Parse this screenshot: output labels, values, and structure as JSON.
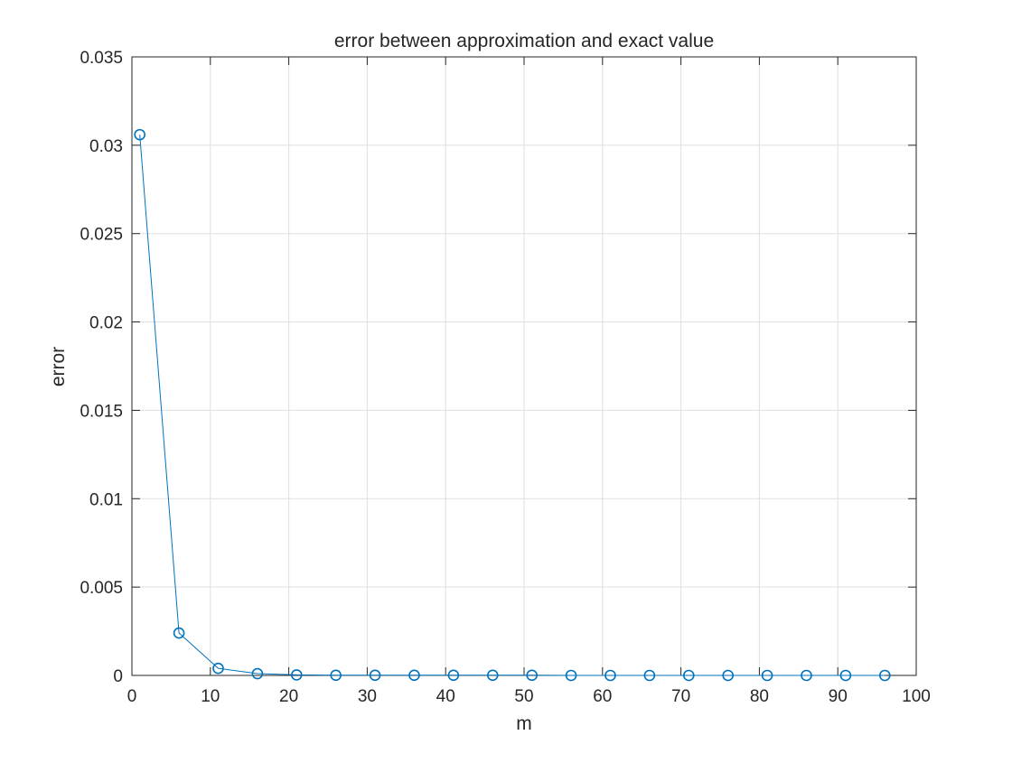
{
  "chart_data": {
    "type": "line",
    "title": "error between approximation and exact value",
    "xlabel": "m",
    "ylabel": "error",
    "xlim": [
      0,
      100
    ],
    "ylim": [
      0,
      0.035
    ],
    "xticks": [
      0,
      10,
      20,
      30,
      40,
      50,
      60,
      70,
      80,
      90,
      100
    ],
    "xtick_labels": [
      "0",
      "10",
      "20",
      "30",
      "40",
      "50",
      "60",
      "70",
      "80",
      "90",
      "100"
    ],
    "yticks": [
      0,
      0.005,
      0.01,
      0.015,
      0.02,
      0.025,
      0.03,
      0.035
    ],
    "ytick_labels": [
      "0",
      "0.005",
      "0.01",
      "0.015",
      "0.02",
      "0.025",
      "0.03",
      "0.035"
    ],
    "grid": true,
    "legend": "none",
    "marker": "circle",
    "series_color": "#0072BD",
    "x": [
      1,
      6,
      11,
      16,
      21,
      26,
      31,
      36,
      41,
      46,
      51,
      56,
      61,
      66,
      71,
      76,
      81,
      86,
      91,
      96
    ],
    "y": [
      0.0306,
      0.0024,
      0.0004,
      0.0001,
      3e-05,
      1e-05,
      1e-05,
      1e-05,
      1e-05,
      1e-05,
      1e-05,
      0,
      0,
      0,
      0,
      0,
      0,
      0,
      0,
      0
    ]
  }
}
